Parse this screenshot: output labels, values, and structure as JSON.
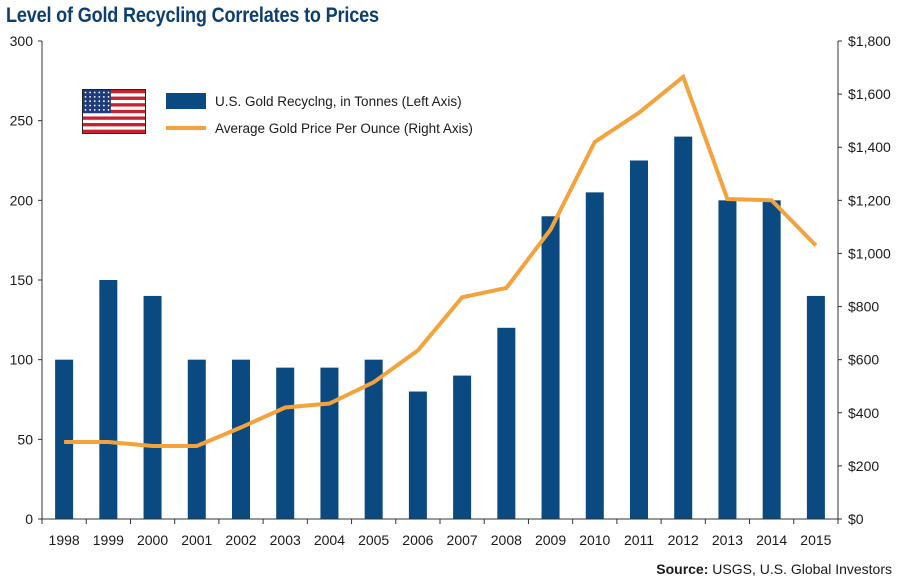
{
  "title": "Level of Gold Recycling Correlates to Prices",
  "source": {
    "label": "Source:",
    "text": "USGS, U.S. Global Investors"
  },
  "legend": {
    "flag_icon": "us-flag-icon",
    "bar_label": "U.S. Gold Recyclng, in Tonnes (Left Axis)",
    "line_label": "Average Gold Price Per Ounce (Right Axis)"
  },
  "colors": {
    "bar": "#0b4a80",
    "line": "#f4a23c",
    "title": "#0b3f73"
  },
  "chart_data": {
    "type": "bar",
    "title": "Level of Gold Recycling Correlates to Prices",
    "categories": [
      "1998",
      "1999",
      "2000",
      "2001",
      "2002",
      "2003",
      "2004",
      "2005",
      "2006",
      "2007",
      "2008",
      "2009",
      "2010",
      "2011",
      "2012",
      "2013",
      "2014",
      "2015"
    ],
    "series": [
      {
        "name": "U.S. Gold Recyclng, in Tonnes (Left Axis)",
        "type": "bar",
        "axis": "left",
        "values": [
          100,
          150,
          140,
          100,
          100,
          95,
          95,
          100,
          80,
          90,
          120,
          190,
          205,
          225,
          240,
          200,
          200,
          140
        ]
      },
      {
        "name": "Average Gold Price Per Ounce (Right Axis)",
        "type": "line",
        "axis": "right",
        "values": [
          290,
          290,
          275,
          275,
          345,
          420,
          435,
          515,
          635,
          835,
          870,
          1090,
          1420,
          1530,
          1665,
          1205,
          1200,
          1030
        ]
      }
    ],
    "left_axis": {
      "min": 0,
      "max": 300,
      "ticks": [
        "0",
        "50",
        "100",
        "150",
        "200",
        "250",
        "300"
      ]
    },
    "right_axis": {
      "min": 0,
      "max": 1800,
      "ticks": [
        "$0",
        "$200",
        "$400",
        "$600",
        "$800",
        "$1,000",
        "$1,200",
        "$1,400",
        "$1,600",
        "$1,800"
      ]
    },
    "grid": false,
    "legend_position": "top-left"
  }
}
